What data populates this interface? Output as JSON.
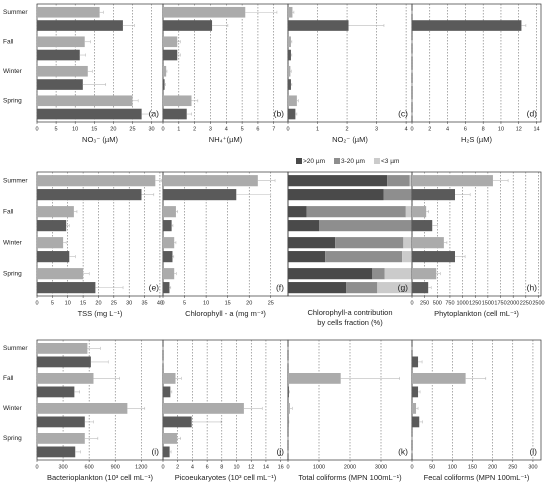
{
  "chart_data": [
    {
      "type": "bar",
      "label": "(a)",
      "xlabel": "NO₃⁻ (µM)",
      "categories": [
        "Summer",
        "Fall",
        "Winter",
        "Spring"
      ],
      "xlim": [
        0,
        33
      ],
      "xticks": [
        0,
        5,
        10,
        15,
        20,
        25,
        30
      ],
      "series": [
        {
          "color": "#ababab",
          "values": [
            16.4,
            12.5,
            13.3,
            25
          ],
          "errors": [
            1,
            1.5,
            1.2,
            1.5
          ]
        },
        {
          "color": "#5a5a5a",
          "values": [
            22.5,
            11.2,
            12,
            27.4
          ],
          "errors": [
            3,
            1.5,
            6,
            2
          ]
        }
      ]
    },
    {
      "type": "bar",
      "label": "(b)",
      "xlabel": "NH₄⁺(µM)",
      "xlim": [
        0,
        7.9
      ],
      "xticks": [
        0,
        1,
        2,
        3,
        4,
        5,
        6,
        7
      ],
      "series": [
        {
          "color": "#ababab",
          "values": [
            5.2,
            0.9,
            0.2,
            1.8
          ],
          "errors": [
            2,
            0.2,
            0.05,
            0.4
          ]
        },
        {
          "color": "#5a5a5a",
          "values": [
            3.1,
            0.9,
            0.1,
            1.5
          ],
          "errors": [
            1,
            0.2,
            0.05,
            0.3
          ]
        }
      ]
    },
    {
      "type": "bar",
      "label": "(c)",
      "xlabel": "NO₂⁻ (µM)",
      "xlim": [
        0,
        4.2
      ],
      "xticks": [
        0,
        1,
        2,
        3,
        4
      ],
      "series": [
        {
          "color": "#ababab",
          "values": [
            0.15,
            0.1,
            0.08,
            0.3
          ],
          "errors": [
            0.05,
            0.03,
            0.03,
            0.05
          ]
        },
        {
          "color": "#5a5a5a",
          "values": [
            2.05,
            0.1,
            0.1,
            0.25
          ],
          "errors": [
            1.2,
            0.03,
            0.03,
            0.05
          ]
        }
      ]
    },
    {
      "type": "bar",
      "label": "(d)",
      "xlabel": "H₂S (µM)",
      "xlim": [
        0,
        14.5
      ],
      "xticks": [
        0,
        2,
        4,
        6,
        8,
        10,
        12,
        14
      ],
      "series": [
        {
          "color": "#ababab",
          "values": [
            0,
            0,
            0,
            0
          ],
          "errors": [
            0,
            0,
            0,
            0
          ]
        },
        {
          "color": "#5a5a5a",
          "values": [
            12.3,
            0,
            0,
            0
          ],
          "errors": [
            0.5,
            0,
            0,
            0
          ]
        }
      ]
    },
    {
      "type": "bar",
      "label": "(e)",
      "xlabel": "TSS (mg L⁻¹)",
      "categories": [
        "Summer",
        "Fall",
        "Winter",
        "Spring"
      ],
      "xlim": [
        0,
        41
      ],
      "xticks": [
        0,
        5,
        10,
        15,
        20,
        25,
        30,
        35,
        40
      ],
      "series": [
        {
          "color": "#ababab",
          "values": [
            38.5,
            12,
            8.5,
            15
          ],
          "errors": [
            2,
            1,
            1,
            2
          ]
        },
        {
          "color": "#5a5a5a",
          "values": [
            34,
            9.5,
            10.5,
            19
          ],
          "errors": [
            4,
            1,
            2,
            9
          ]
        }
      ]
    },
    {
      "type": "bar",
      "label": "(f)",
      "xlabel": "Chlorophyll - a (mg m⁻³)",
      "xlim": [
        0,
        29
      ],
      "xticks": [
        0,
        5,
        10,
        15,
        20,
        25
      ],
      "series": [
        {
          "color": "#ababab",
          "values": [
            22,
            3,
            2.6,
            2.6
          ],
          "errors": [
            4,
            0.4,
            0.4,
            0.5
          ]
        },
        {
          "color": "#5a5a5a",
          "values": [
            17,
            2,
            2.2,
            1.5
          ],
          "errors": [
            8,
            0.3,
            0.3,
            0.3
          ]
        }
      ]
    },
    {
      "type": "stacked",
      "label": "(g)",
      "xlabel": [
        "Chlorophyll-a contribution",
        "by cells fraction (%)"
      ],
      "xlim": [
        0,
        100
      ],
      "series": [
        {
          "name": ">20 µm",
          "color": "#4a4a4a",
          "values": [
            80,
            77,
            15,
            25,
            38,
            30,
            68,
            47
          ]
        },
        {
          "name": "3-20  µm",
          "color": "#8e8e8e",
          "values": [
            18,
            23,
            80,
            75,
            55,
            62,
            10,
            25
          ]
        },
        {
          "name": "<3  µm",
          "color": "#cbcbcb",
          "values": [
            2,
            0,
            5,
            0,
            7,
            8,
            22,
            28
          ]
        }
      ]
    },
    {
      "type": "bar",
      "label": "(h)",
      "xlabel": "Phytoplankton (cell mL⁻¹)",
      "xlim": [
        0,
        2550
      ],
      "xticks": [
        0,
        250,
        500,
        750,
        1000,
        1250,
        1500,
        1750,
        2000,
        2250,
        2500
      ],
      "series": [
        {
          "color": "#ababab",
          "values": [
            1600,
            280,
            630,
            480
          ],
          "errors": [
            300,
            50,
            60,
            80
          ]
        },
        {
          "color": "#5a5a5a",
          "values": [
            850,
            400,
            850,
            320
          ],
          "errors": [
            300,
            100,
            200,
            60
          ]
        }
      ]
    },
    {
      "type": "bar",
      "label": "(i)",
      "xlabel": "Bacterioplankton (10³ cell mL⁻¹)",
      "categories": [
        "Summer",
        "Fall",
        "Winter",
        "Spring"
      ],
      "xlim": [
        0,
        1450
      ],
      "xticks": [
        0,
        300,
        600,
        900,
        1200
      ],
      "series": [
        {
          "color": "#ababab",
          "values": [
            580,
            650,
            1040,
            550
          ],
          "errors": [
            150,
            300,
            200,
            150
          ]
        },
        {
          "color": "#5a5a5a",
          "values": [
            620,
            430,
            550,
            440
          ],
          "errors": [
            200,
            60,
            100,
            60
          ]
        }
      ]
    },
    {
      "type": "bar",
      "label": "(j)",
      "xlabel": "Picoeukaryotes (10³ cell mL⁻¹)",
      "xlim": [
        0,
        17
      ],
      "xticks": [
        0,
        2,
        4,
        6,
        8,
        10,
        12,
        14,
        16
      ],
      "series": [
        {
          "color": "#ababab",
          "values": [
            0,
            1.7,
            11,
            1.9
          ],
          "errors": [
            0,
            0.8,
            2.5,
            0.5
          ]
        },
        {
          "color": "#5a5a5a",
          "values": [
            0,
            1,
            3.9,
            0.9
          ],
          "errors": [
            0,
            0.2,
            4,
            0.2
          ]
        }
      ]
    },
    {
      "type": "bar",
      "label": "(k)",
      "xlabel": "Total coliforms (MPN 100mL⁻¹)",
      "xlim": [
        0,
        4000
      ],
      "xticks": [
        0,
        1000,
        2000,
        3000
      ],
      "series": [
        {
          "color": "#ababab",
          "values": [
            0,
            1700,
            60,
            0
          ],
          "errors": [
            0,
            1900,
            80,
            0
          ]
        },
        {
          "color": "#5a5a5a",
          "values": [
            0,
            30,
            20,
            0
          ],
          "errors": [
            0,
            20,
            10,
            0
          ]
        }
      ]
    },
    {
      "type": "bar",
      "label": "(l)",
      "xlabel": "Fecal coliforms (MPN 100mL⁻¹)",
      "xlim": [
        0,
        320
      ],
      "xticks": [
        0,
        50,
        100,
        150,
        200,
        250,
        300
      ],
      "series": [
        {
          "color": "#ababab",
          "values": [
            0,
            133,
            10,
            0
          ],
          "errors": [
            0,
            50,
            5,
            0
          ]
        },
        {
          "color": "#5a5a5a",
          "values": [
            15,
            15,
            18,
            0
          ],
          "errors": [
            10,
            5,
            8,
            0
          ]
        }
      ]
    }
  ]
}
